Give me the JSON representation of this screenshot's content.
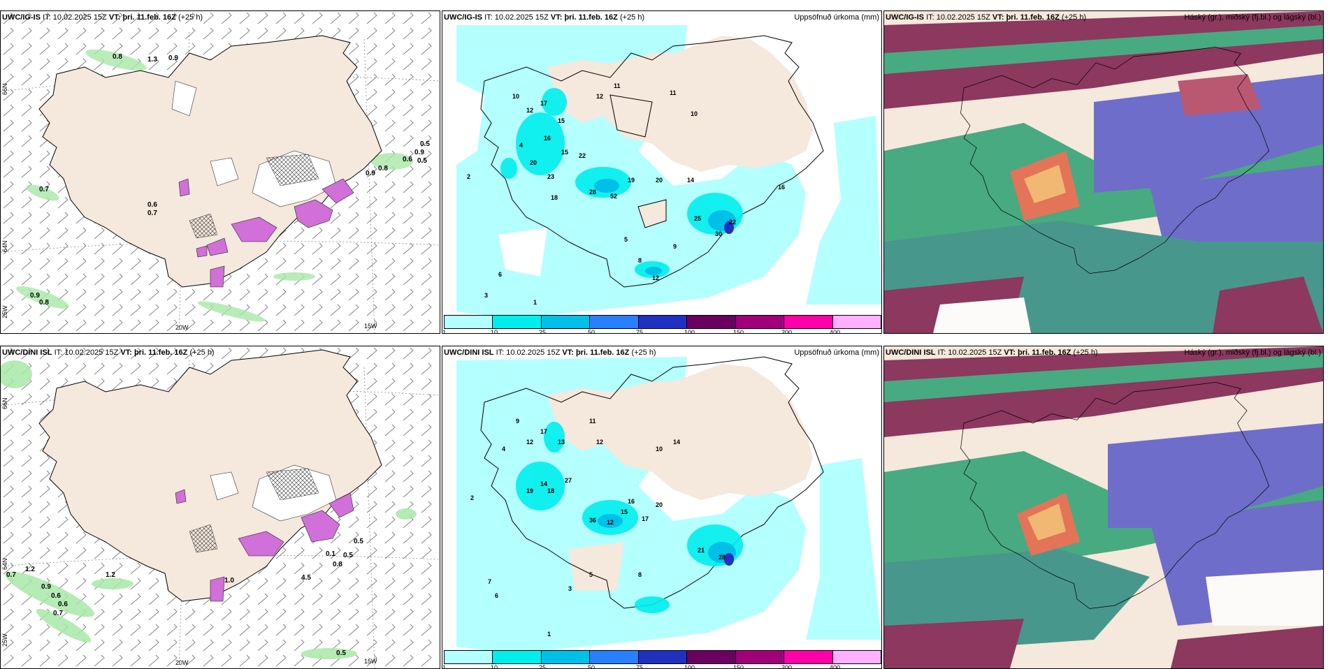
{
  "panels": [
    {
      "model": "UWC/IG-IS",
      "it_label": "IT:",
      "run_time": "10.02.2025 15Z",
      "vt_label": "VT:",
      "valid_time": "þri. 11.feb. 16Z",
      "lead": "(+25 h)",
      "right_label": ""
    },
    {
      "model": "UWC/IG-IS",
      "it_label": "IT:",
      "run_time": "10.02.2025 15Z",
      "vt_label": "VT:",
      "valid_time": "þri. 11.feb. 16Z",
      "lead": "(+25 h)",
      "right_label": "Uppsöfnuð úrkoma (mm)"
    },
    {
      "model": "UWC/IG-IS",
      "it_label": "IT:",
      "run_time": "10.02.2025 15Z",
      "vt_label": "VT:",
      "valid_time": "þri. 11.feb. 16Z",
      "lead": "(+25 h)",
      "right_label": "Háský (gr.), miðský (fj.bl.) og lágský (bl.)"
    },
    {
      "model": "UWC/DINI ISL",
      "it_label": "IT:",
      "run_time": "10.02.2025 15Z",
      "vt_label": "VT:",
      "valid_time": "þri. 11.feb. 16Z",
      "lead": "(+25 h)",
      "right_label": ""
    },
    {
      "model": "UWC/DINI ISL",
      "it_label": "IT:",
      "run_time": "10.02.2025 15Z",
      "vt_label": "VT:",
      "valid_time": "þri. 11.feb. 16Z",
      "lead": "(+25 h)",
      "right_label": "Uppsöfnuð úrkoma (mm)"
    },
    {
      "model": "UWC/DINI ISL",
      "it_label": "IT:",
      "run_time": "10.02.2025 15Z",
      "vt_label": "VT:",
      "valid_time": "þri. 11.feb. 16Z",
      "lead": "(+25 h)",
      "right_label": "Háský (gr.), miðský (fj.bl.) og lágský (bl.)"
    }
  ],
  "axes": {
    "lat66": "66N",
    "lat64": "64N",
    "lon25": "25W",
    "lon20": "20W",
    "lon15": "15W"
  },
  "colorbar": {
    "ticks": [
      "1",
      "10",
      "25",
      "50",
      "75",
      "100",
      "150",
      "200",
      "400"
    ],
    "colors": [
      "#b4ffff",
      "#00eeee",
      "#00c0e8",
      "#2880ff",
      "#2030c0",
      "#6a0060",
      "#a0007a",
      "#ff00a8",
      "#ffb0ff"
    ]
  },
  "wind_labels_top": [
    "0.8",
    "1.3",
    "0.9",
    "0.7",
    "0.6",
    "0.7",
    "0.5",
    "0.9",
    "0.5",
    "0.6",
    "0.9",
    "0.8",
    "0.9",
    "0.8"
  ],
  "wind_labels_bottom": [
    "0.7",
    "1.2",
    "1.2",
    "0.9",
    "0.6",
    "0.6",
    "0.7",
    "0.5",
    "0.5",
    "0.8",
    "0.1",
    "4.5",
    "1.0",
    "0.5"
  ],
  "precip_top": [
    "2",
    "4",
    "10",
    "12",
    "17",
    "15",
    "16",
    "20",
    "23",
    "15",
    "22",
    "18",
    "28",
    "52",
    "19",
    "20",
    "14",
    "12",
    "11",
    "25",
    "30",
    "22",
    "16",
    "12",
    "8",
    "5",
    "9",
    "10",
    "11",
    "6",
    "3",
    "1"
  ],
  "precip_bottom": [
    "2",
    "4",
    "9",
    "12",
    "17",
    "13",
    "19",
    "14",
    "18",
    "27",
    "36",
    "12",
    "15",
    "16",
    "17",
    "20",
    "21",
    "28",
    "11",
    "12",
    "14",
    "10",
    "8",
    "5",
    "3",
    "7",
    "6",
    "1"
  ],
  "colors": {
    "land": "#f5e8dc",
    "sea_precip": "#b4ffff",
    "wind_green": "#a8e8a8",
    "snow_purple": "#d070d8"
  }
}
